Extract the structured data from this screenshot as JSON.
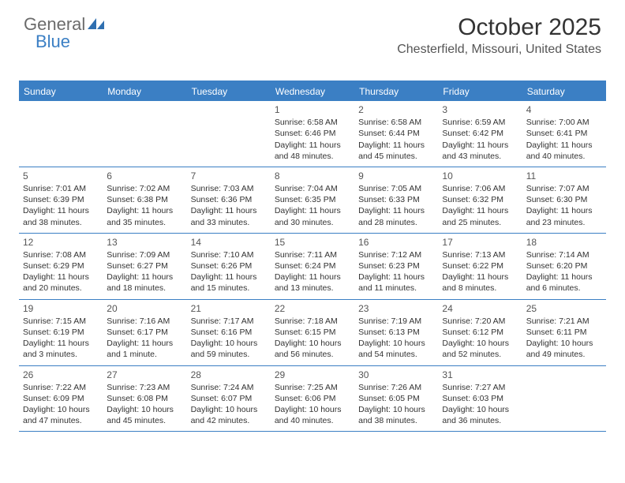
{
  "logo": {
    "general": "General",
    "blue": "Blue"
  },
  "header": {
    "month_title": "October 2025",
    "location": "Chesterfield, Missouri, United States"
  },
  "colors": {
    "accent": "#3b7fc4",
    "text": "#333333",
    "logo_gray": "#6b6b6b",
    "background": "#ffffff"
  },
  "calendar": {
    "day_names": [
      "Sunday",
      "Monday",
      "Tuesday",
      "Wednesday",
      "Thursday",
      "Friday",
      "Saturday"
    ],
    "weeks": [
      [
        null,
        null,
        null,
        {
          "num": "1",
          "sunrise": "Sunrise: 6:58 AM",
          "sunset": "Sunset: 6:46 PM",
          "daylight": "Daylight: 11 hours and 48 minutes."
        },
        {
          "num": "2",
          "sunrise": "Sunrise: 6:58 AM",
          "sunset": "Sunset: 6:44 PM",
          "daylight": "Daylight: 11 hours and 45 minutes."
        },
        {
          "num": "3",
          "sunrise": "Sunrise: 6:59 AM",
          "sunset": "Sunset: 6:42 PM",
          "daylight": "Daylight: 11 hours and 43 minutes."
        },
        {
          "num": "4",
          "sunrise": "Sunrise: 7:00 AM",
          "sunset": "Sunset: 6:41 PM",
          "daylight": "Daylight: 11 hours and 40 minutes."
        }
      ],
      [
        {
          "num": "5",
          "sunrise": "Sunrise: 7:01 AM",
          "sunset": "Sunset: 6:39 PM",
          "daylight": "Daylight: 11 hours and 38 minutes."
        },
        {
          "num": "6",
          "sunrise": "Sunrise: 7:02 AM",
          "sunset": "Sunset: 6:38 PM",
          "daylight": "Daylight: 11 hours and 35 minutes."
        },
        {
          "num": "7",
          "sunrise": "Sunrise: 7:03 AM",
          "sunset": "Sunset: 6:36 PM",
          "daylight": "Daylight: 11 hours and 33 minutes."
        },
        {
          "num": "8",
          "sunrise": "Sunrise: 7:04 AM",
          "sunset": "Sunset: 6:35 PM",
          "daylight": "Daylight: 11 hours and 30 minutes."
        },
        {
          "num": "9",
          "sunrise": "Sunrise: 7:05 AM",
          "sunset": "Sunset: 6:33 PM",
          "daylight": "Daylight: 11 hours and 28 minutes."
        },
        {
          "num": "10",
          "sunrise": "Sunrise: 7:06 AM",
          "sunset": "Sunset: 6:32 PM",
          "daylight": "Daylight: 11 hours and 25 minutes."
        },
        {
          "num": "11",
          "sunrise": "Sunrise: 7:07 AM",
          "sunset": "Sunset: 6:30 PM",
          "daylight": "Daylight: 11 hours and 23 minutes."
        }
      ],
      [
        {
          "num": "12",
          "sunrise": "Sunrise: 7:08 AM",
          "sunset": "Sunset: 6:29 PM",
          "daylight": "Daylight: 11 hours and 20 minutes."
        },
        {
          "num": "13",
          "sunrise": "Sunrise: 7:09 AM",
          "sunset": "Sunset: 6:27 PM",
          "daylight": "Daylight: 11 hours and 18 minutes."
        },
        {
          "num": "14",
          "sunrise": "Sunrise: 7:10 AM",
          "sunset": "Sunset: 6:26 PM",
          "daylight": "Daylight: 11 hours and 15 minutes."
        },
        {
          "num": "15",
          "sunrise": "Sunrise: 7:11 AM",
          "sunset": "Sunset: 6:24 PM",
          "daylight": "Daylight: 11 hours and 13 minutes."
        },
        {
          "num": "16",
          "sunrise": "Sunrise: 7:12 AM",
          "sunset": "Sunset: 6:23 PM",
          "daylight": "Daylight: 11 hours and 11 minutes."
        },
        {
          "num": "17",
          "sunrise": "Sunrise: 7:13 AM",
          "sunset": "Sunset: 6:22 PM",
          "daylight": "Daylight: 11 hours and 8 minutes."
        },
        {
          "num": "18",
          "sunrise": "Sunrise: 7:14 AM",
          "sunset": "Sunset: 6:20 PM",
          "daylight": "Daylight: 11 hours and 6 minutes."
        }
      ],
      [
        {
          "num": "19",
          "sunrise": "Sunrise: 7:15 AM",
          "sunset": "Sunset: 6:19 PM",
          "daylight": "Daylight: 11 hours and 3 minutes."
        },
        {
          "num": "20",
          "sunrise": "Sunrise: 7:16 AM",
          "sunset": "Sunset: 6:17 PM",
          "daylight": "Daylight: 11 hours and 1 minute."
        },
        {
          "num": "21",
          "sunrise": "Sunrise: 7:17 AM",
          "sunset": "Sunset: 6:16 PM",
          "daylight": "Daylight: 10 hours and 59 minutes."
        },
        {
          "num": "22",
          "sunrise": "Sunrise: 7:18 AM",
          "sunset": "Sunset: 6:15 PM",
          "daylight": "Daylight: 10 hours and 56 minutes."
        },
        {
          "num": "23",
          "sunrise": "Sunrise: 7:19 AM",
          "sunset": "Sunset: 6:13 PM",
          "daylight": "Daylight: 10 hours and 54 minutes."
        },
        {
          "num": "24",
          "sunrise": "Sunrise: 7:20 AM",
          "sunset": "Sunset: 6:12 PM",
          "daylight": "Daylight: 10 hours and 52 minutes."
        },
        {
          "num": "25",
          "sunrise": "Sunrise: 7:21 AM",
          "sunset": "Sunset: 6:11 PM",
          "daylight": "Daylight: 10 hours and 49 minutes."
        }
      ],
      [
        {
          "num": "26",
          "sunrise": "Sunrise: 7:22 AM",
          "sunset": "Sunset: 6:09 PM",
          "daylight": "Daylight: 10 hours and 47 minutes."
        },
        {
          "num": "27",
          "sunrise": "Sunrise: 7:23 AM",
          "sunset": "Sunset: 6:08 PM",
          "daylight": "Daylight: 10 hours and 45 minutes."
        },
        {
          "num": "28",
          "sunrise": "Sunrise: 7:24 AM",
          "sunset": "Sunset: 6:07 PM",
          "daylight": "Daylight: 10 hours and 42 minutes."
        },
        {
          "num": "29",
          "sunrise": "Sunrise: 7:25 AM",
          "sunset": "Sunset: 6:06 PM",
          "daylight": "Daylight: 10 hours and 40 minutes."
        },
        {
          "num": "30",
          "sunrise": "Sunrise: 7:26 AM",
          "sunset": "Sunset: 6:05 PM",
          "daylight": "Daylight: 10 hours and 38 minutes."
        },
        {
          "num": "31",
          "sunrise": "Sunrise: 7:27 AM",
          "sunset": "Sunset: 6:03 PM",
          "daylight": "Daylight: 10 hours and 36 minutes."
        },
        null
      ]
    ]
  }
}
